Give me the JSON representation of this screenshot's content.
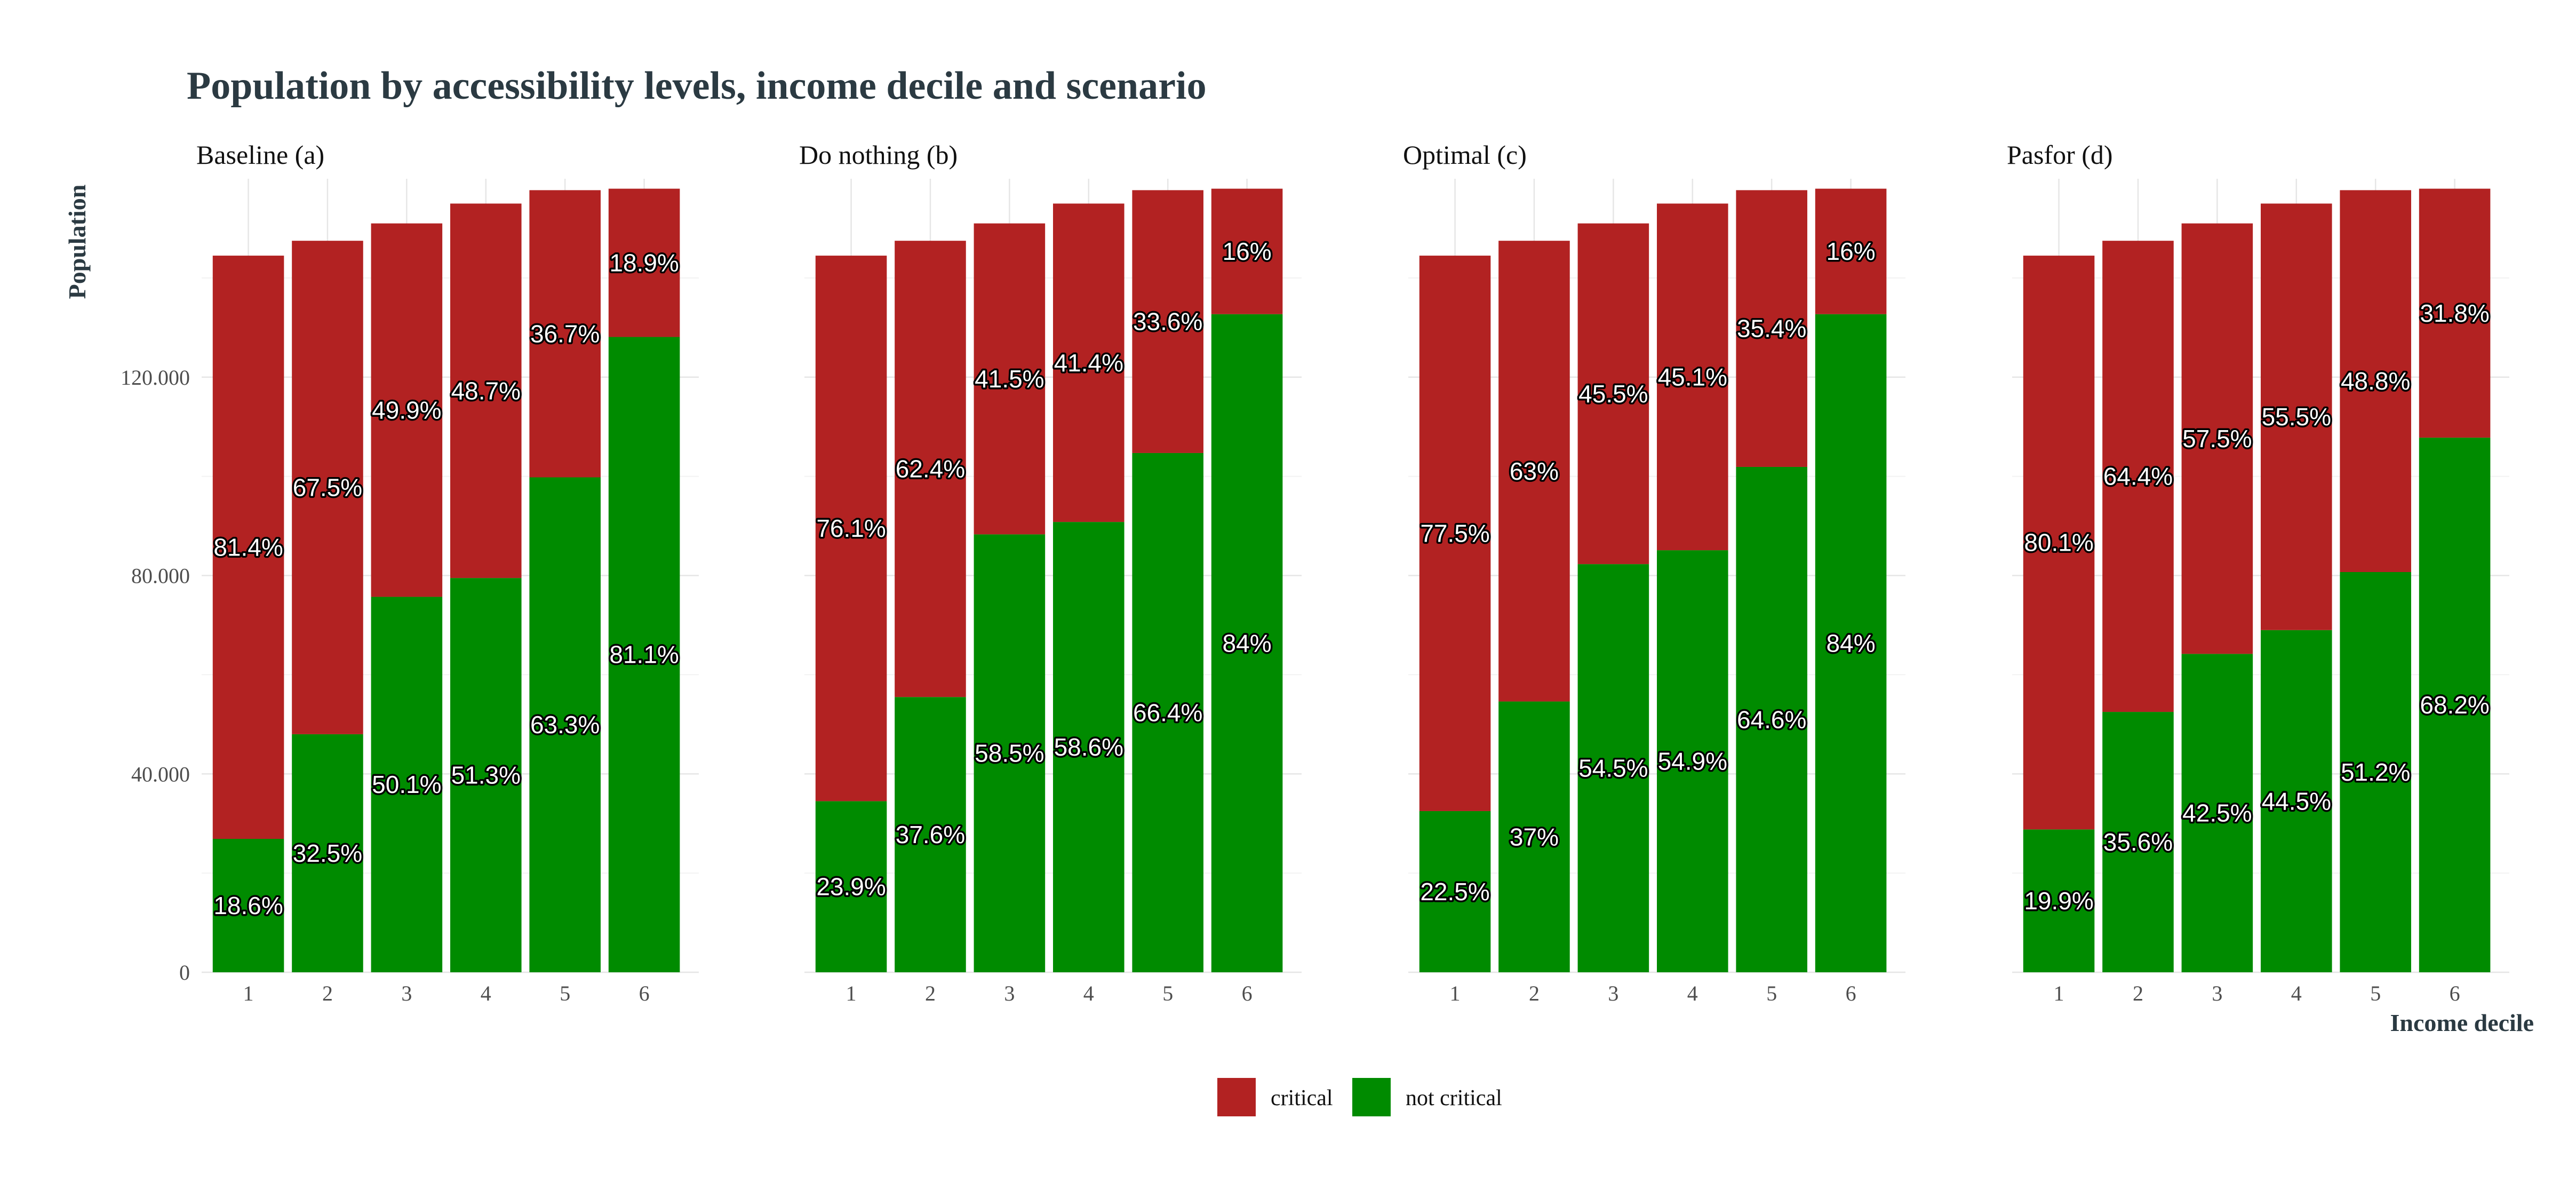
{
  "chart_data": {
    "type": "bar",
    "stacked": true,
    "title": "Population by accessibility levels, income decile and scenario",
    "ylabel": "Population",
    "xlabel": "Income decile",
    "categories": [
      "1",
      "2",
      "3",
      "4",
      "5",
      "6"
    ],
    "ylim": [
      0,
      160000
    ],
    "yticks": [
      0,
      40000,
      80000,
      120000
    ],
    "ytick_labels": [
      "0",
      "40.000",
      "80.000",
      "120.000"
    ],
    "grid": true,
    "legend_position": "bottom",
    "legend": [
      {
        "name": "critical",
        "color": "#b22222"
      },
      {
        "name": "not critical",
        "color": "#008b00"
      }
    ],
    "colors": {
      "critical": "#b22222",
      "not_critical": "#008b00"
    },
    "facets": [
      {
        "name": "Baseline (a)",
        "totals": [
          144500,
          147500,
          151000,
          155000,
          157700,
          158000
        ],
        "not_critical_pct": [
          "18.6%",
          "32.5%",
          "50.1%",
          "51.3%",
          "63.3%",
          "81.1%"
        ],
        "critical_pct": [
          "81.4%",
          "67.5%",
          "49.9%",
          "48.7%",
          "36.7%",
          "18.9%"
        ],
        "not_critical": [
          26900,
          48000,
          75700,
          79500,
          99800,
          128100
        ],
        "critical": [
          117600,
          99500,
          75300,
          75500,
          57900,
          29900
        ]
      },
      {
        "name": "Do nothing (b)",
        "totals": [
          144500,
          147500,
          151000,
          155000,
          157700,
          158000
        ],
        "not_critical_pct": [
          "23.9%",
          "37.6%",
          "58.5%",
          "58.6%",
          "66.4%",
          "84%"
        ],
        "critical_pct": [
          "76.1%",
          "62.4%",
          "41.5%",
          "41.4%",
          "33.6%",
          "16%"
        ],
        "not_critical": [
          34500,
          55500,
          88300,
          90800,
          104700,
          132700
        ],
        "critical": [
          110000,
          92000,
          62700,
          64200,
          53000,
          25300
        ]
      },
      {
        "name": "Optimal (c)",
        "totals": [
          144500,
          147500,
          151000,
          155000,
          157700,
          158000
        ],
        "not_critical_pct": [
          "22.5%",
          "37%",
          "54.5%",
          "54.9%",
          "64.6%",
          "84%"
        ],
        "critical_pct": [
          "77.5%",
          "63%",
          "45.5%",
          "45.1%",
          "35.4%",
          "16%"
        ],
        "not_critical": [
          32500,
          54600,
          82300,
          85100,
          101900,
          132700
        ],
        "critical": [
          112000,
          92900,
          68700,
          69900,
          55800,
          25300
        ]
      },
      {
        "name": "Pasfor (d)",
        "totals": [
          144500,
          147500,
          151000,
          155000,
          157700,
          158000
        ],
        "not_critical_pct": [
          "19.9%",
          "35.6%",
          "42.5%",
          "44.5%",
          "51.2%",
          "68.2%"
        ],
        "critical_pct": [
          "80.1%",
          "64.4%",
          "57.5%",
          "55.5%",
          "48.8%",
          "31.8%"
        ],
        "not_critical": [
          28800,
          52500,
          64200,
          69000,
          80700,
          107800
        ],
        "critical": [
          115700,
          95000,
          86800,
          86000,
          77000,
          50200
        ]
      }
    ]
  }
}
